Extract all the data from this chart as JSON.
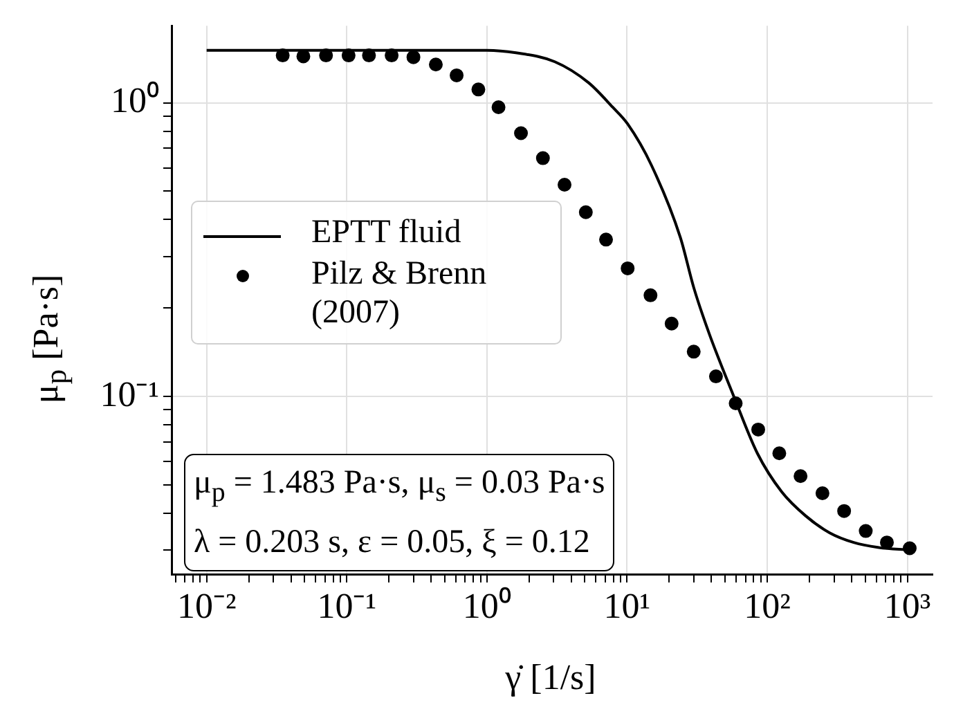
{
  "chart_data": {
    "type": "scatter",
    "xlabel": "γ̇ [1/s]",
    "ylabel": "μ$_{p}$ [Pa·s]",
    "log": "xy",
    "grid": true,
    "legend": "left",
    "xlim": [
      0.00562,
      1514
    ],
    "ylim": [
      0.0248,
      1.83
    ],
    "xticks": [
      {
        "value": 0.006,
        "label": null
      },
      {
        "value": 0.007,
        "label": null
      },
      {
        "value": 0.008,
        "label": null
      },
      {
        "value": 0.009,
        "label": null
      },
      {
        "value": 0.01,
        "label": "10⁻²"
      },
      {
        "value": 0.02,
        "label": null
      },
      {
        "value": 0.03,
        "label": null
      },
      {
        "value": 0.04,
        "label": null
      },
      {
        "value": 0.05,
        "label": null
      },
      {
        "value": 0.06,
        "label": null
      },
      {
        "value": 0.07,
        "label": null
      },
      {
        "value": 0.08,
        "label": null
      },
      {
        "value": 0.09,
        "label": null
      },
      {
        "value": 0.1,
        "label": "10⁻¹"
      },
      {
        "value": 0.2,
        "label": null
      },
      {
        "value": 0.3,
        "label": null
      },
      {
        "value": 0.4,
        "label": null
      },
      {
        "value": 0.5,
        "label": null
      },
      {
        "value": 0.6,
        "label": null
      },
      {
        "value": 0.7,
        "label": null
      },
      {
        "value": 0.8,
        "label": null
      },
      {
        "value": 0.9,
        "label": null
      },
      {
        "value": 1,
        "label": "10⁰"
      },
      {
        "value": 2,
        "label": null
      },
      {
        "value": 3,
        "label": null
      },
      {
        "value": 4,
        "label": null
      },
      {
        "value": 5,
        "label": null
      },
      {
        "value": 6,
        "label": null
      },
      {
        "value": 7,
        "label": null
      },
      {
        "value": 8,
        "label": null
      },
      {
        "value": 9,
        "label": null
      },
      {
        "value": 10,
        "label": "10¹"
      },
      {
        "value": 20,
        "label": null
      },
      {
        "value": 30,
        "label": null
      },
      {
        "value": 40,
        "label": null
      },
      {
        "value": 50,
        "label": null
      },
      {
        "value": 60,
        "label": null
      },
      {
        "value": 70,
        "label": null
      },
      {
        "value": 80,
        "label": null
      },
      {
        "value": 90,
        "label": null
      },
      {
        "value": 100,
        "label": "10²"
      },
      {
        "value": 200,
        "label": null
      },
      {
        "value": 300,
        "label": null
      },
      {
        "value": 400,
        "label": null
      },
      {
        "value": 500,
        "label": null
      },
      {
        "value": 600,
        "label": null
      },
      {
        "value": 700,
        "label": null
      },
      {
        "value": 800,
        "label": null
      },
      {
        "value": 900,
        "label": null
      },
      {
        "value": 1000,
        "label": "10³"
      }
    ],
    "yticks": [
      {
        "value": 0.03,
        "label": null
      },
      {
        "value": 0.04,
        "label": null
      },
      {
        "value": 0.05,
        "label": null
      },
      {
        "value": 0.06,
        "label": null
      },
      {
        "value": 0.07,
        "label": null
      },
      {
        "value": 0.08,
        "label": null
      },
      {
        "value": 0.09,
        "label": null
      },
      {
        "value": 0.1,
        "label": "10⁻¹"
      },
      {
        "value": 0.2,
        "label": null
      },
      {
        "value": 0.3,
        "label": null
      },
      {
        "value": 0.4,
        "label": null
      },
      {
        "value": 0.5,
        "label": null
      },
      {
        "value": 0.6,
        "label": null
      },
      {
        "value": 0.7,
        "label": null
      },
      {
        "value": 0.8,
        "label": null
      },
      {
        "value": 0.9,
        "label": null
      },
      {
        "value": 1,
        "label": "10⁰"
      }
    ],
    "series": [
      {
        "name": "EPTT fluid",
        "type": "line",
        "line_style": "solid",
        "color": "#000000",
        "x": [
          0.01,
          0.1,
          1,
          1.61,
          3.05,
          5.32,
          7.9,
          10.1,
          14.9,
          24,
          29.9,
          38.5,
          57.3,
          85.1,
          127,
          188,
          279,
          414,
          616,
          1040
        ],
        "values": [
          1.51,
          1.51,
          1.51,
          1.48,
          1.38,
          1.17,
          0.966,
          0.847,
          0.614,
          0.348,
          0.235,
          0.164,
          0.101,
          0.064,
          0.0473,
          0.0392,
          0.0343,
          0.0318,
          0.0306,
          0.03
        ]
      },
      {
        "name": "Pilz & Brenn (2007)",
        "type": "scatter",
        "marker": "circle",
        "color": "#000000",
        "x": [
          0.0349,
          0.049,
          0.0711,
          0.103,
          0.144,
          0.209,
          0.299,
          0.432,
          0.608,
          0.869,
          1.21,
          1.75,
          2.51,
          3.58,
          5.08,
          7.08,
          10.1,
          14.7,
          20.8,
          29.9,
          43.1,
          59.6,
          86.3,
          122,
          173,
          248,
          354,
          505,
          715,
          1040
        ],
        "values": [
          1.45,
          1.44,
          1.45,
          1.45,
          1.45,
          1.45,
          1.43,
          1.35,
          1.24,
          1.11,
          0.966,
          0.788,
          0.648,
          0.526,
          0.424,
          0.342,
          0.273,
          0.221,
          0.177,
          0.142,
          0.117,
          0.0947,
          0.0771,
          0.064,
          0.0535,
          0.0468,
          0.0407,
          0.0348,
          0.0318,
          0.0304
        ]
      }
    ],
    "annotations": [
      "μ$_{p}$ = 1.483 Pa·s,  μ$_{s}$ = 0.03 Pa·s",
      "λ = 0.203 s,  ε = 0.05,  ξ = 0.12"
    ]
  }
}
